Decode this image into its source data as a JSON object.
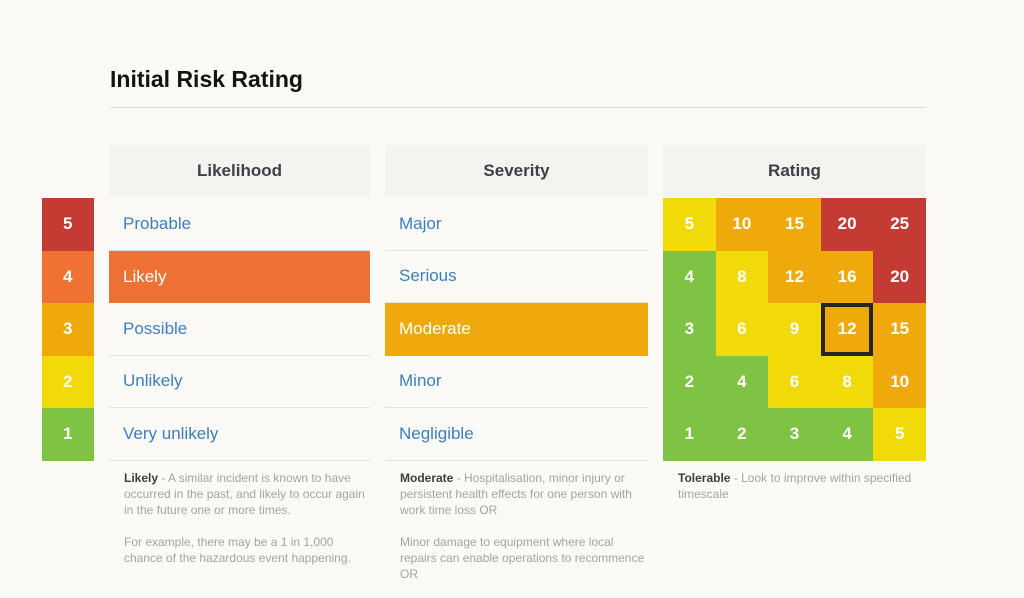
{
  "page": {
    "title": "Initial Risk Rating"
  },
  "colors": {
    "background": "#FBFAF7",
    "header_bg": "#F4F3F0",
    "blue": "#3E7EBE",
    "red": "#C33B32",
    "orange": "#EF7134",
    "amber": "#F0A90B",
    "yellow": "#F2D908",
    "green": "#7EC344",
    "highlight_border": "#262626"
  },
  "likelihood_scale": {
    "values": [
      "5",
      "4",
      "3",
      "2",
      "1"
    ],
    "colors": [
      "red",
      "orange",
      "amber",
      "yellow",
      "green"
    ]
  },
  "likelihood": {
    "header": "Likelihood",
    "items": [
      {
        "label": "Probable",
        "selected": false
      },
      {
        "label": "Likely",
        "selected": true,
        "selected_color": "orange"
      },
      {
        "label": "Possible",
        "selected": false
      },
      {
        "label": "Unlikely",
        "selected": false
      },
      {
        "label": "Very unlikely",
        "selected": false
      }
    ],
    "note": {
      "lead": "Likely",
      "body": " - A similar incident is known to have occurred in the past, and likely to occur again in the future one or more times.",
      "body2": "For example, there may be a 1 in 1,000 chance of the hazardous event happening."
    }
  },
  "severity": {
    "header": "Severity",
    "items": [
      {
        "label": "Major",
        "selected": false
      },
      {
        "label": "Serious",
        "selected": false
      },
      {
        "label": "Moderate",
        "selected": true,
        "selected_color": "amber"
      },
      {
        "label": "Minor",
        "selected": false
      },
      {
        "label": "Negligible",
        "selected": false
      }
    ],
    "note": {
      "lead": "Moderate",
      "body": " - Hospitalisation, minor injury or persistent health effects for one person with work time loss OR",
      "body2": "Minor damage to equipment where local repairs can enable operations to recommence OR"
    }
  },
  "rating": {
    "header": "Rating",
    "matrix": [
      [
        {
          "value": "5",
          "color": "yellow"
        },
        {
          "value": "10",
          "color": "amber"
        },
        {
          "value": "15",
          "color": "amber"
        },
        {
          "value": "20",
          "color": "red"
        },
        {
          "value": "25",
          "color": "red"
        }
      ],
      [
        {
          "value": "4",
          "color": "green"
        },
        {
          "value": "8",
          "color": "yellow"
        },
        {
          "value": "12",
          "color": "amber"
        },
        {
          "value": "16",
          "color": "amber"
        },
        {
          "value": "20",
          "color": "red"
        }
      ],
      [
        {
          "value": "3",
          "color": "green"
        },
        {
          "value": "6",
          "color": "yellow"
        },
        {
          "value": "9",
          "color": "yellow"
        },
        {
          "value": "12",
          "color": "amber",
          "highlighted": true
        },
        {
          "value": "15",
          "color": "amber"
        }
      ],
      [
        {
          "value": "2",
          "color": "green"
        },
        {
          "value": "4",
          "color": "green"
        },
        {
          "value": "6",
          "color": "yellow"
        },
        {
          "value": "8",
          "color": "yellow"
        },
        {
          "value": "10",
          "color": "amber"
        }
      ],
      [
        {
          "value": "1",
          "color": "green"
        },
        {
          "value": "2",
          "color": "green"
        },
        {
          "value": "3",
          "color": "green"
        },
        {
          "value": "4",
          "color": "green"
        },
        {
          "value": "5",
          "color": "yellow"
        }
      ]
    ],
    "note": {
      "lead": "Tolerable",
      "body": " - Look to improve within specified timescale",
      "body2": ""
    }
  }
}
